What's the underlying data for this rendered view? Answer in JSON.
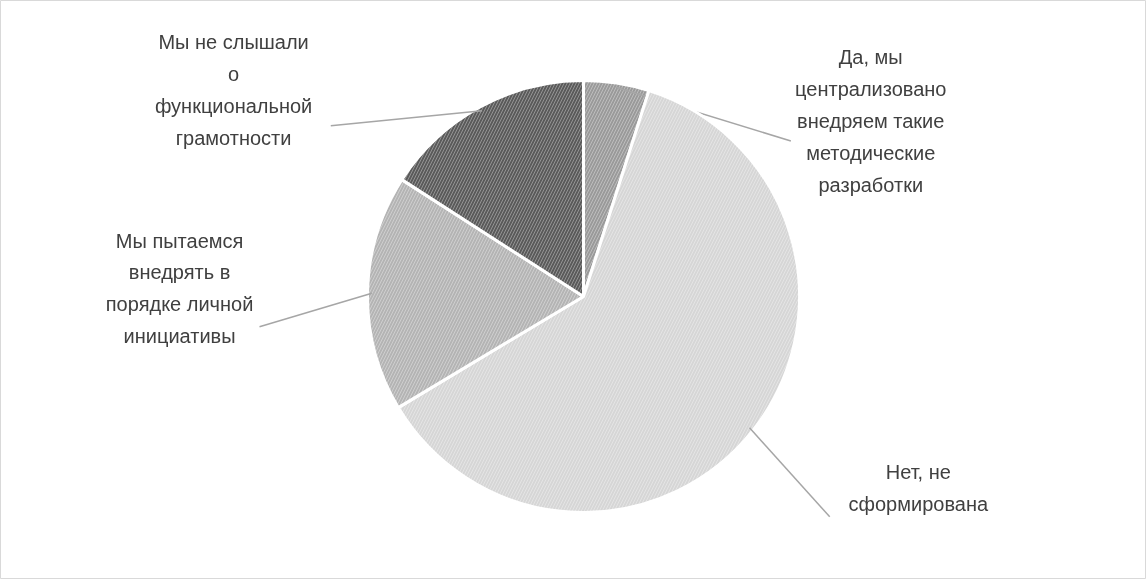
{
  "chart_data": {
    "type": "pie",
    "categories": [
      "Да, мы\nцентрализовано\nвнедряем такие\nметодические\nразработки",
      "Нет, не\nсформирована",
      "Мы пытаемся\nвнедрять в\nпорядке личной\nинициативы",
      "Мы не слышали\nо\nфункциональной\nграмотности"
    ],
    "values": [
      4.9,
      61.5,
      17.7,
      15.9
    ],
    "colors": [
      "#9a9a9a",
      "#d6d6d6",
      "#b4b4b4",
      "#5a5a5a"
    ]
  }
}
